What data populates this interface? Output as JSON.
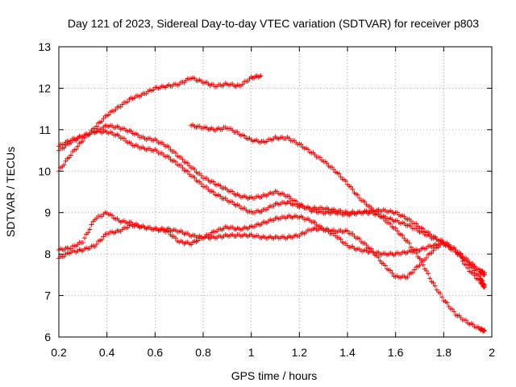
{
  "chart_data": {
    "type": "scatter",
    "title": "Day 121 of 2023, Sidereal Day-to-day VTEC variation (SDTVAR) for receiver p803",
    "xlabel": "GPS time / hours",
    "ylabel": "SDTVAR / TECUs",
    "xlim": [
      0.2,
      2.0
    ],
    "ylim": [
      6,
      13
    ],
    "xticks": [
      0.2,
      0.4,
      0.6,
      0.8,
      1.0,
      1.2,
      1.4,
      1.6,
      1.8,
      2.0
    ],
    "xtick_labels": [
      "0.2",
      "0.4",
      "0.6",
      "0.8",
      "1",
      "1.2",
      "1.4",
      "1.6",
      "1.8",
      "2"
    ],
    "yticks": [
      6,
      7,
      8,
      9,
      10,
      11,
      12,
      13
    ],
    "ytick_labels": [
      "6",
      "7",
      "8",
      "9",
      "10",
      "11",
      "12",
      "13"
    ],
    "grid": true,
    "marker": "+",
    "color": "#ff0000",
    "series": [
      {
        "name": "series-1",
        "x": [
          0.2,
          0.25,
          0.3,
          0.35,
          0.4,
          0.45,
          0.5,
          0.55,
          0.6,
          0.65,
          0.7,
          0.75,
          0.8,
          0.85,
          0.9,
          0.95,
          1.0,
          1.04
        ],
        "y": [
          10.0,
          10.4,
          10.75,
          11.05,
          11.35,
          11.55,
          11.75,
          11.85,
          12.0,
          12.05,
          12.1,
          12.25,
          12.15,
          12.05,
          12.1,
          12.05,
          12.25,
          12.3
        ]
      },
      {
        "name": "series-2",
        "x": [
          0.2,
          0.25,
          0.3,
          0.35,
          0.4,
          0.45,
          0.5,
          0.55,
          0.6,
          0.65,
          0.7,
          0.75,
          0.8,
          0.85,
          0.9,
          0.95,
          1.0,
          1.05,
          1.1,
          1.15,
          1.2,
          1.25,
          1.3,
          1.35,
          1.4,
          1.45,
          1.5,
          1.55,
          1.6,
          1.65,
          1.7,
          1.75,
          1.8,
          1.85,
          1.9,
          1.95,
          1.97
        ],
        "y": [
          10.6,
          10.75,
          10.85,
          10.95,
          11.1,
          11.05,
          10.95,
          10.8,
          10.75,
          10.6,
          10.35,
          10.1,
          9.85,
          9.7,
          9.55,
          9.4,
          9.35,
          9.4,
          9.5,
          9.4,
          9.2,
          9.05,
          9.0,
          9.0,
          8.95,
          9.0,
          9.05,
          9.05,
          9.0,
          8.85,
          8.65,
          8.45,
          8.25,
          8.05,
          7.8,
          7.6,
          7.55
        ]
      },
      {
        "name": "series-3",
        "x": [
          0.2,
          0.25,
          0.3,
          0.35,
          0.4,
          0.45,
          0.5,
          0.55,
          0.6,
          0.65,
          0.7,
          0.75,
          0.8,
          0.85,
          0.9,
          0.95,
          1.0,
          1.05,
          1.1,
          1.15,
          1.2,
          1.25,
          1.3,
          1.35,
          1.4,
          1.45,
          1.5,
          1.55,
          1.6,
          1.65,
          1.7,
          1.75,
          1.8,
          1.85,
          1.9,
          1.95,
          1.97
        ],
        "y": [
          10.5,
          10.7,
          10.85,
          10.95,
          10.95,
          10.85,
          10.65,
          10.55,
          10.5,
          10.35,
          10.15,
          9.9,
          9.65,
          9.45,
          9.3,
          9.15,
          9.0,
          9.05,
          9.2,
          9.25,
          9.15,
          9.1,
          9.1,
          9.05,
          9.0,
          9.0,
          9.0,
          8.9,
          8.8,
          8.7,
          8.55,
          8.4,
          8.3,
          8.1,
          7.85,
          7.6,
          7.5
        ]
      },
      {
        "name": "series-4",
        "x": [
          0.2,
          0.25,
          0.3,
          0.35,
          0.4,
          0.45,
          0.5,
          0.55,
          0.6,
          0.65,
          0.7,
          0.75,
          0.8,
          0.85,
          0.9,
          0.95,
          1.0,
          1.05,
          1.1,
          1.15,
          1.2,
          1.25,
          1.3,
          1.35,
          1.4,
          1.45,
          1.5,
          1.55,
          1.6,
          1.65,
          1.7,
          1.75,
          1.8,
          1.85,
          1.9,
          1.95,
          1.97
        ],
        "y": [
          8.1,
          8.15,
          8.3,
          8.85,
          9.0,
          8.8,
          8.75,
          8.65,
          8.6,
          8.6,
          8.55,
          8.45,
          8.4,
          8.4,
          8.45,
          8.45,
          8.45,
          8.4,
          8.4,
          8.4,
          8.45,
          8.6,
          8.6,
          8.45,
          8.2,
          8.1,
          8.05,
          8.0,
          8.0,
          8.05,
          8.1,
          8.2,
          8.25,
          8.1,
          7.8,
          7.45,
          7.25
        ]
      },
      {
        "name": "series-5",
        "x": [
          0.2,
          0.25,
          0.3,
          0.35,
          0.4,
          0.45,
          0.5,
          0.55,
          0.6,
          0.65,
          0.7,
          0.75,
          0.8,
          0.85,
          0.9,
          0.95,
          1.0,
          1.05,
          1.1,
          1.15,
          1.2,
          1.25,
          1.3,
          1.35,
          1.4,
          1.45,
          1.5,
          1.55,
          1.6,
          1.65,
          1.7,
          1.75,
          1.8,
          1.85,
          1.9,
          1.95,
          1.97
        ],
        "y": [
          7.9,
          8.05,
          8.1,
          8.2,
          8.5,
          8.55,
          8.7,
          8.65,
          8.6,
          8.55,
          8.3,
          8.25,
          8.4,
          8.55,
          8.65,
          8.6,
          8.65,
          8.75,
          8.85,
          8.9,
          8.9,
          8.8,
          8.6,
          8.55,
          8.55,
          8.35,
          8.1,
          7.75,
          7.45,
          7.45,
          7.75,
          8.05,
          8.3,
          8.1,
          7.65,
          7.35,
          7.2
        ]
      },
      {
        "name": "series-6",
        "x": [
          0.75,
          0.8,
          0.85,
          0.9,
          0.95,
          1.0,
          1.05,
          1.1,
          1.15,
          1.2,
          1.25,
          1.3,
          1.35,
          1.4,
          1.45,
          1.5,
          1.55,
          1.6,
          1.65,
          1.7,
          1.75,
          1.8,
          1.85,
          1.9,
          1.95,
          1.97
        ],
        "y": [
          11.1,
          11.05,
          11.0,
          11.05,
          10.9,
          10.75,
          10.7,
          10.8,
          10.8,
          10.65,
          10.45,
          10.25,
          10.0,
          9.7,
          9.35,
          9.1,
          8.85,
          8.6,
          8.3,
          7.9,
          7.35,
          6.9,
          6.55,
          6.35,
          6.2,
          6.15
        ]
      }
    ]
  }
}
